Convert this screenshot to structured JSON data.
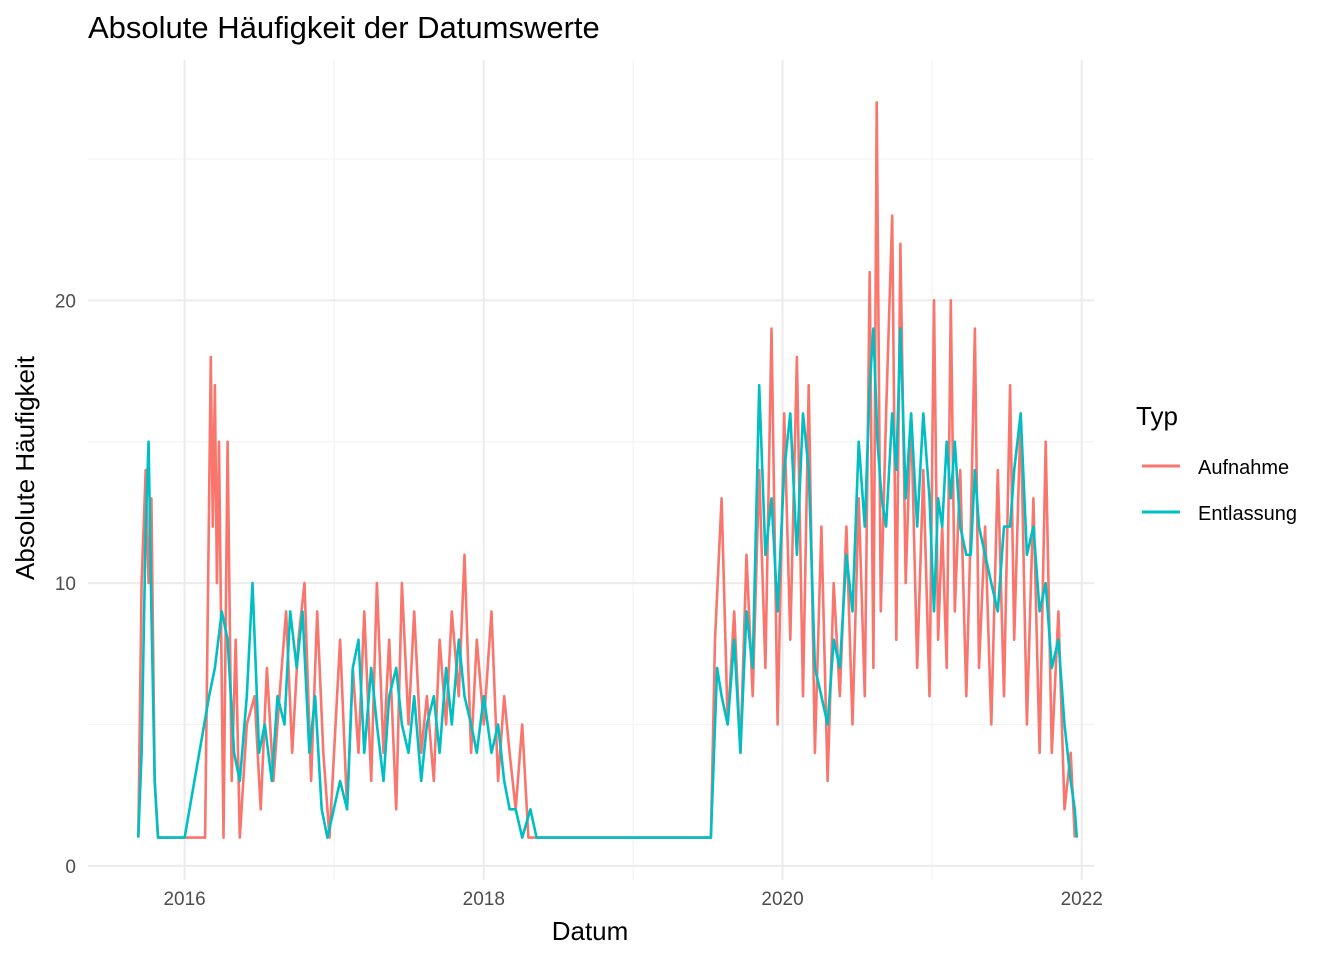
{
  "chart_data": {
    "type": "line",
    "title": "Absolute Häufigkeit der Datumswerte",
    "xlabel": "Datum",
    "ylabel": "Absolute Häufigkeit",
    "x_axis": {
      "kind": "date",
      "range": [
        "2015-05-10",
        "2022-01-31"
      ],
      "ticks": [
        {
          "value": "2016-01-01",
          "label": "2016"
        },
        {
          "value": "2018-01-01",
          "label": "2018"
        },
        {
          "value": "2020-01-01",
          "label": "2020"
        },
        {
          "value": "2022-01-01",
          "label": "2022"
        }
      ]
    },
    "y_axis": {
      "range": [
        -0.5,
        28.5
      ],
      "ticks": [
        {
          "value": 0,
          "label": "0"
        },
        {
          "value": 10,
          "label": "10"
        },
        {
          "value": 20,
          "label": "20"
        }
      ]
    },
    "grid": true,
    "legend": {
      "title": "Typ",
      "position": "right",
      "entries": [
        {
          "label": "Aufnahme",
          "color": "#F8766D"
        },
        {
          "label": "Entlassung",
          "color": "#00BFC4"
        }
      ]
    },
    "series": [
      {
        "name": "Aufnahme",
        "color": "#F8766D",
        "points": [
          [
            "2015-09-10",
            1
          ],
          [
            "2015-09-18",
            10
          ],
          [
            "2015-09-28",
            14
          ],
          [
            "2015-10-05",
            10
          ],
          [
            "2015-10-12",
            13
          ],
          [
            "2015-10-20",
            3
          ],
          [
            "2015-10-28",
            1
          ],
          [
            "2016-02-20",
            1
          ],
          [
            "2016-03-05",
            18
          ],
          [
            "2016-03-10",
            12
          ],
          [
            "2016-03-15",
            17
          ],
          [
            "2016-03-20",
            10
          ],
          [
            "2016-03-25",
            15
          ],
          [
            "2016-04-05",
            1
          ],
          [
            "2016-04-15",
            15
          ],
          [
            "2016-04-25",
            3
          ],
          [
            "2016-05-05",
            8
          ],
          [
            "2016-05-15",
            1
          ],
          [
            "2016-06-01",
            5
          ],
          [
            "2016-06-20",
            6
          ],
          [
            "2016-07-05",
            2
          ],
          [
            "2016-07-20",
            7
          ],
          [
            "2016-08-05",
            3
          ],
          [
            "2016-08-20",
            6
          ],
          [
            "2016-09-05",
            9
          ],
          [
            "2016-09-20",
            4
          ],
          [
            "2016-10-05",
            8
          ],
          [
            "2016-10-20",
            10
          ],
          [
            "2016-11-05",
            3
          ],
          [
            "2016-11-20",
            9
          ],
          [
            "2016-12-05",
            4
          ],
          [
            "2016-12-20",
            1
          ],
          [
            "2017-01-15",
            8
          ],
          [
            "2017-02-01",
            2
          ],
          [
            "2017-02-15",
            7
          ],
          [
            "2017-03-01",
            4
          ],
          [
            "2017-03-15",
            9
          ],
          [
            "2017-04-01",
            3
          ],
          [
            "2017-04-15",
            10
          ],
          [
            "2017-05-01",
            4
          ],
          [
            "2017-05-15",
            8
          ],
          [
            "2017-06-01",
            2
          ],
          [
            "2017-06-15",
            10
          ],
          [
            "2017-07-01",
            5
          ],
          [
            "2017-07-15",
            9
          ],
          [
            "2017-08-01",
            4
          ],
          [
            "2017-08-15",
            6
          ],
          [
            "2017-09-01",
            3
          ],
          [
            "2017-09-15",
            8
          ],
          [
            "2017-10-01",
            5
          ],
          [
            "2017-10-15",
            9
          ],
          [
            "2017-11-01",
            6
          ],
          [
            "2017-11-15",
            11
          ],
          [
            "2017-12-01",
            4
          ],
          [
            "2017-12-15",
            8
          ],
          [
            "2018-01-01",
            5
          ],
          [
            "2018-01-20",
            9
          ],
          [
            "2018-02-05",
            3
          ],
          [
            "2018-02-20",
            6
          ],
          [
            "2018-03-05",
            4
          ],
          [
            "2018-03-20",
            2
          ],
          [
            "2018-04-05",
            5
          ],
          [
            "2018-04-20",
            1
          ],
          [
            "2018-05-10",
            1
          ],
          [
            "2019-06-01",
            1
          ],
          [
            "2019-07-10",
            1
          ],
          [
            "2019-07-20",
            8
          ],
          [
            "2019-08-05",
            13
          ],
          [
            "2019-08-20",
            5
          ],
          [
            "2019-09-05",
            9
          ],
          [
            "2019-09-20",
            4
          ],
          [
            "2019-10-05",
            11
          ],
          [
            "2019-10-20",
            6
          ],
          [
            "2019-11-05",
            14
          ],
          [
            "2019-11-20",
            7
          ],
          [
            "2019-12-05",
            19
          ],
          [
            "2019-12-20",
            5
          ],
          [
            "2020-01-05",
            16
          ],
          [
            "2020-01-20",
            8
          ],
          [
            "2020-02-05",
            18
          ],
          [
            "2020-02-20",
            6
          ],
          [
            "2020-03-05",
            17
          ],
          [
            "2020-03-20",
            4
          ],
          [
            "2020-04-05",
            12
          ],
          [
            "2020-04-20",
            3
          ],
          [
            "2020-05-05",
            10
          ],
          [
            "2020-05-20",
            6
          ],
          [
            "2020-06-05",
            12
          ],
          [
            "2020-06-20",
            5
          ],
          [
            "2020-07-05",
            13
          ],
          [
            "2020-07-20",
            6
          ],
          [
            "2020-08-01",
            21
          ],
          [
            "2020-08-10",
            7
          ],
          [
            "2020-08-18",
            27
          ],
          [
            "2020-08-28",
            9
          ],
          [
            "2020-09-10",
            16
          ],
          [
            "2020-09-25",
            23
          ],
          [
            "2020-10-05",
            8
          ],
          [
            "2020-10-15",
            22
          ],
          [
            "2020-10-28",
            10
          ],
          [
            "2020-11-10",
            16
          ],
          [
            "2020-11-25",
            7
          ],
          [
            "2020-12-10",
            14
          ],
          [
            "2020-12-25",
            6
          ],
          [
            "2021-01-05",
            20
          ],
          [
            "2021-01-15",
            8
          ],
          [
            "2021-01-25",
            12
          ],
          [
            "2021-02-05",
            7
          ],
          [
            "2021-02-15",
            20
          ],
          [
            "2021-02-25",
            9
          ],
          [
            "2021-03-10",
            14
          ],
          [
            "2021-03-25",
            6
          ],
          [
            "2021-04-05",
            12
          ],
          [
            "2021-04-15",
            19
          ],
          [
            "2021-04-25",
            7
          ],
          [
            "2021-05-10",
            12
          ],
          [
            "2021-05-25",
            5
          ],
          [
            "2021-06-10",
            14
          ],
          [
            "2021-06-25",
            6
          ],
          [
            "2021-07-10",
            17
          ],
          [
            "2021-07-20",
            8
          ],
          [
            "2021-08-05",
            16
          ],
          [
            "2021-08-20",
            5
          ],
          [
            "2021-09-05",
            13
          ],
          [
            "2021-09-20",
            4
          ],
          [
            "2021-10-05",
            15
          ],
          [
            "2021-10-20",
            4
          ],
          [
            "2021-11-05",
            9
          ],
          [
            "2021-11-20",
            2
          ],
          [
            "2021-12-05",
            4
          ],
          [
            "2021-12-15",
            1
          ]
        ]
      },
      {
        "name": "Entlassung",
        "color": "#00BFC4",
        "points": [
          [
            "2015-09-10",
            1
          ],
          [
            "2015-09-18",
            4
          ],
          [
            "2015-09-28",
            12
          ],
          [
            "2015-10-05",
            15
          ],
          [
            "2015-10-12",
            9
          ],
          [
            "2015-10-20",
            3
          ],
          [
            "2015-10-28",
            1
          ],
          [
            "2015-11-10",
            1
          ],
          [
            "2016-01-01",
            1
          ],
          [
            "2016-03-01",
            6
          ],
          [
            "2016-03-15",
            7
          ],
          [
            "2016-04-01",
            9
          ],
          [
            "2016-04-15",
            8
          ],
          [
            "2016-05-01",
            4
          ],
          [
            "2016-05-15",
            3
          ],
          [
            "2016-06-01",
            6
          ],
          [
            "2016-06-15",
            10
          ],
          [
            "2016-07-01",
            4
          ],
          [
            "2016-07-15",
            5
          ],
          [
            "2016-08-01",
            3
          ],
          [
            "2016-08-15",
            6
          ],
          [
            "2016-09-01",
            5
          ],
          [
            "2016-09-15",
            9
          ],
          [
            "2016-10-01",
            7
          ],
          [
            "2016-10-15",
            9
          ],
          [
            "2016-11-01",
            4
          ],
          [
            "2016-11-15",
            6
          ],
          [
            "2016-12-01",
            2
          ],
          [
            "2016-12-15",
            1
          ],
          [
            "2017-01-15",
            3
          ],
          [
            "2017-02-01",
            2
          ],
          [
            "2017-02-15",
            7
          ],
          [
            "2017-03-01",
            8
          ],
          [
            "2017-03-15",
            4
          ],
          [
            "2017-04-01",
            7
          ],
          [
            "2017-04-15",
            5
          ],
          [
            "2017-05-01",
            3
          ],
          [
            "2017-05-15",
            6
          ],
          [
            "2017-06-01",
            7
          ],
          [
            "2017-06-15",
            5
          ],
          [
            "2017-07-01",
            4
          ],
          [
            "2017-07-15",
            6
          ],
          [
            "2017-08-01",
            3
          ],
          [
            "2017-08-15",
            5
          ],
          [
            "2017-09-01",
            6
          ],
          [
            "2017-09-15",
            4
          ],
          [
            "2017-10-01",
            7
          ],
          [
            "2017-10-15",
            5
          ],
          [
            "2017-11-01",
            8
          ],
          [
            "2017-11-15",
            6
          ],
          [
            "2017-12-01",
            5
          ],
          [
            "2017-12-15",
            4
          ],
          [
            "2018-01-01",
            6
          ],
          [
            "2018-01-20",
            4
          ],
          [
            "2018-02-05",
            5
          ],
          [
            "2018-02-20",
            3
          ],
          [
            "2018-03-05",
            2
          ],
          [
            "2018-03-20",
            2
          ],
          [
            "2018-04-05",
            1
          ],
          [
            "2018-04-25",
            2
          ],
          [
            "2018-05-10",
            1
          ],
          [
            "2019-06-01",
            1
          ],
          [
            "2019-07-10",
            1
          ],
          [
            "2019-07-25",
            7
          ],
          [
            "2019-08-05",
            6
          ],
          [
            "2019-08-20",
            5
          ],
          [
            "2019-09-05",
            8
          ],
          [
            "2019-09-20",
            4
          ],
          [
            "2019-10-05",
            9
          ],
          [
            "2019-10-20",
            7
          ],
          [
            "2019-11-05",
            17
          ],
          [
            "2019-11-20",
            11
          ],
          [
            "2019-12-05",
            13
          ],
          [
            "2019-12-20",
            9
          ],
          [
            "2020-01-05",
            14
          ],
          [
            "2020-01-20",
            16
          ],
          [
            "2020-02-05",
            11
          ],
          [
            "2020-02-20",
            16
          ],
          [
            "2020-03-05",
            14
          ],
          [
            "2020-03-20",
            7
          ],
          [
            "2020-04-05",
            6
          ],
          [
            "2020-04-20",
            5
          ],
          [
            "2020-05-05",
            8
          ],
          [
            "2020-05-20",
            7
          ],
          [
            "2020-06-05",
            11
          ],
          [
            "2020-06-20",
            9
          ],
          [
            "2020-07-05",
            15
          ],
          [
            "2020-07-20",
            12
          ],
          [
            "2020-08-01",
            17
          ],
          [
            "2020-08-10",
            19
          ],
          [
            "2020-08-20",
            15
          ],
          [
            "2020-08-30",
            13
          ],
          [
            "2020-09-10",
            12
          ],
          [
            "2020-09-25",
            16
          ],
          [
            "2020-10-05",
            14
          ],
          [
            "2020-10-15",
            19
          ],
          [
            "2020-10-28",
            13
          ],
          [
            "2020-11-10",
            16
          ],
          [
            "2020-11-25",
            12
          ],
          [
            "2020-12-10",
            16
          ],
          [
            "2020-12-25",
            13
          ],
          [
            "2021-01-05",
            9
          ],
          [
            "2021-01-15",
            13
          ],
          [
            "2021-01-25",
            12
          ],
          [
            "2021-02-05",
            15
          ],
          [
            "2021-02-15",
            13
          ],
          [
            "2021-02-25",
            15
          ],
          [
            "2021-03-10",
            12
          ],
          [
            "2021-03-25",
            11
          ],
          [
            "2021-04-05",
            11
          ],
          [
            "2021-04-15",
            14
          ],
          [
            "2021-04-25",
            12
          ],
          [
            "2021-05-10",
            11
          ],
          [
            "2021-05-25",
            10
          ],
          [
            "2021-06-10",
            9
          ],
          [
            "2021-06-25",
            12
          ],
          [
            "2021-07-10",
            12
          ],
          [
            "2021-07-20",
            14
          ],
          [
            "2021-08-05",
            16
          ],
          [
            "2021-08-20",
            11
          ],
          [
            "2021-09-05",
            12
          ],
          [
            "2021-09-20",
            9
          ],
          [
            "2021-10-05",
            10
          ],
          [
            "2021-10-20",
            7
          ],
          [
            "2021-11-05",
            8
          ],
          [
            "2021-11-20",
            5
          ],
          [
            "2021-12-05",
            3
          ],
          [
            "2021-12-15",
            2
          ],
          [
            "2021-12-20",
            1
          ]
        ]
      }
    ]
  }
}
